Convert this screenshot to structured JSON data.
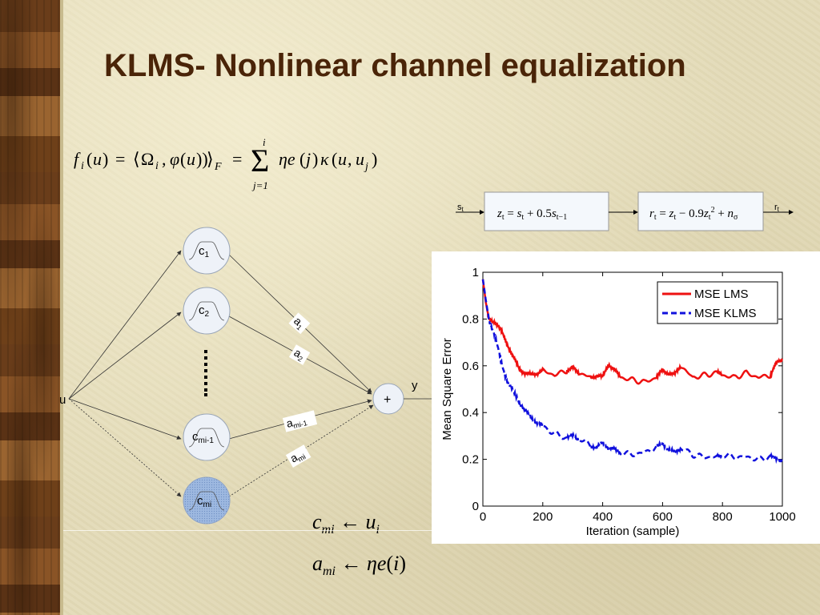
{
  "slide": {
    "title": "KLMS- Nonlinear channel equalization"
  },
  "equations": {
    "main_f": "f_i(u) = ⟨Ω_i, φ(u)⟩_F = Σ_{j=1}^{i} η e(j) κ(u, u_j)",
    "sum_upper": "i",
    "sum_lower": "j=1",
    "update_c": "c_mi ← u_i",
    "update_a": "a_mi ← η e(i)"
  },
  "channel": {
    "input_label": "s",
    "input_sub": "t",
    "output_label": "r",
    "output_sub": "t",
    "block1": "z_t = s_t + 0.5 s_{t-1}",
    "block2": "r_t = z_t - 0.9 z_t^2 + n_σ"
  },
  "network": {
    "input_label": "u",
    "output_label": "y",
    "sum_symbol": "+",
    "centers": [
      {
        "main": "c",
        "sub": "1"
      },
      {
        "main": "c",
        "sub": "2"
      },
      {
        "main": "c",
        "sub": "mi-1"
      },
      {
        "main": "c",
        "sub": "mi"
      }
    ],
    "weights": [
      {
        "main": "a",
        "sub": "1"
      },
      {
        "main": "a",
        "sub": "2"
      },
      {
        "main": "a",
        "sub": "mi-1"
      },
      {
        "main": "a",
        "sub": "mi"
      }
    ]
  },
  "colors": {
    "title": "#4a2408",
    "lms": "#ee1111",
    "klms": "#1111dd",
    "new_center_fill": "#9db8e0"
  },
  "chart_data": {
    "type": "line",
    "xlabel": "Iteration (sample)",
    "ylabel": "Mean Square Error",
    "xlim": [
      0,
      1000
    ],
    "ylim": [
      0,
      1
    ],
    "xticks": [
      0,
      200,
      400,
      600,
      800,
      1000
    ],
    "yticks": [
      0,
      0.2,
      0.4,
      0.6,
      0.8,
      1
    ],
    "legend": "top-right",
    "grid": false,
    "series": [
      {
        "name": "MSE LMS",
        "style": "solid",
        "x": [
          0,
          10,
          20,
          40,
          60,
          80,
          100,
          120,
          140,
          160,
          180,
          200,
          240,
          280,
          300,
          320,
          360,
          380,
          400,
          420,
          440,
          460,
          500,
          540,
          580,
          600,
          620,
          640,
          660,
          700,
          740,
          780,
          800,
          840,
          880,
          920,
          960,
          980,
          1000
        ],
        "y": [
          0.97,
          0.87,
          0.8,
          0.79,
          0.75,
          0.7,
          0.64,
          0.59,
          0.57,
          0.56,
          0.57,
          0.58,
          0.56,
          0.58,
          0.59,
          0.57,
          0.55,
          0.56,
          0.55,
          0.61,
          0.58,
          0.55,
          0.54,
          0.53,
          0.55,
          0.58,
          0.57,
          0.56,
          0.6,
          0.55,
          0.56,
          0.57,
          0.56,
          0.55,
          0.57,
          0.55,
          0.56,
          0.61,
          0.63
        ]
      },
      {
        "name": "MSE KLMS",
        "style": "dashed",
        "x": [
          0,
          10,
          20,
          40,
          60,
          80,
          100,
          120,
          140,
          160,
          180,
          200,
          240,
          280,
          300,
          320,
          360,
          380,
          400,
          420,
          440,
          460,
          500,
          540,
          580,
          600,
          620,
          640,
          660,
          700,
          740,
          780,
          800,
          840,
          880,
          920,
          960,
          980,
          1000
        ],
        "y": [
          0.97,
          0.88,
          0.8,
          0.73,
          0.62,
          0.54,
          0.49,
          0.45,
          0.41,
          0.38,
          0.36,
          0.34,
          0.31,
          0.29,
          0.3,
          0.29,
          0.26,
          0.25,
          0.27,
          0.25,
          0.24,
          0.23,
          0.22,
          0.23,
          0.25,
          0.27,
          0.24,
          0.23,
          0.25,
          0.22,
          0.21,
          0.21,
          0.22,
          0.21,
          0.21,
          0.2,
          0.21,
          0.2,
          0.2
        ]
      }
    ]
  }
}
